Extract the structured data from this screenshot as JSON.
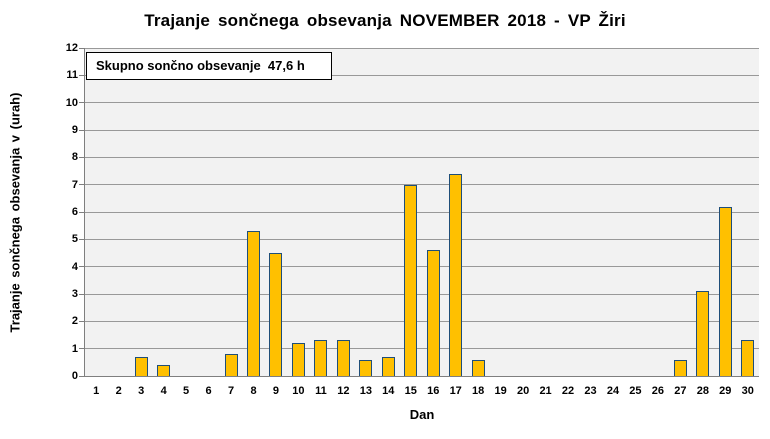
{
  "title": "Trajanje sončnega obsevanja NOVEMBER 2018 - VP Žiri",
  "annotation": {
    "text": "Skupno sončno obsevanje  47,6 h"
  },
  "axes": {
    "x_title": "Dan",
    "y_title": "Trajanje sončnega obsevanja v (urah)"
  },
  "chart_data": {
    "type": "bar",
    "x": [
      1,
      2,
      3,
      4,
      5,
      6,
      7,
      8,
      9,
      10,
      11,
      12,
      13,
      14,
      15,
      16,
      17,
      18,
      19,
      20,
      21,
      22,
      23,
      24,
      25,
      26,
      27,
      28,
      29,
      30
    ],
    "values": [
      0,
      0,
      0.7,
      0.4,
      0,
      0,
      0.8,
      5.3,
      4.5,
      1.2,
      1.3,
      1.3,
      0.6,
      0.7,
      7.0,
      4.6,
      7.4,
      0.6,
      0,
      0,
      0,
      0,
      0,
      0,
      0,
      0,
      0.6,
      3.1,
      6.2,
      1.3
    ],
    "total_label": "Skupno sončno obsevanje 47,6 h",
    "total_hours": "47,6",
    "title": "Trajanje sončnega obsevanja NOVEMBER 2018 - VP Žiri",
    "xlabel": "Dan",
    "ylabel": "Trajanje sončnega obsevanja v (urah)",
    "ylim": [
      0,
      12
    ],
    "yticks": [
      0,
      1,
      2,
      3,
      4,
      5,
      6,
      7,
      8,
      9,
      10,
      11,
      12
    ],
    "grid": true,
    "legend": "none",
    "colors": {
      "bar_fill": "#FFC000",
      "bar_border": "#1F4E79",
      "plot_background": "#F2F2F2",
      "gridline": "#999999",
      "axis": "#7F7F7F",
      "text": "#000000"
    }
  }
}
